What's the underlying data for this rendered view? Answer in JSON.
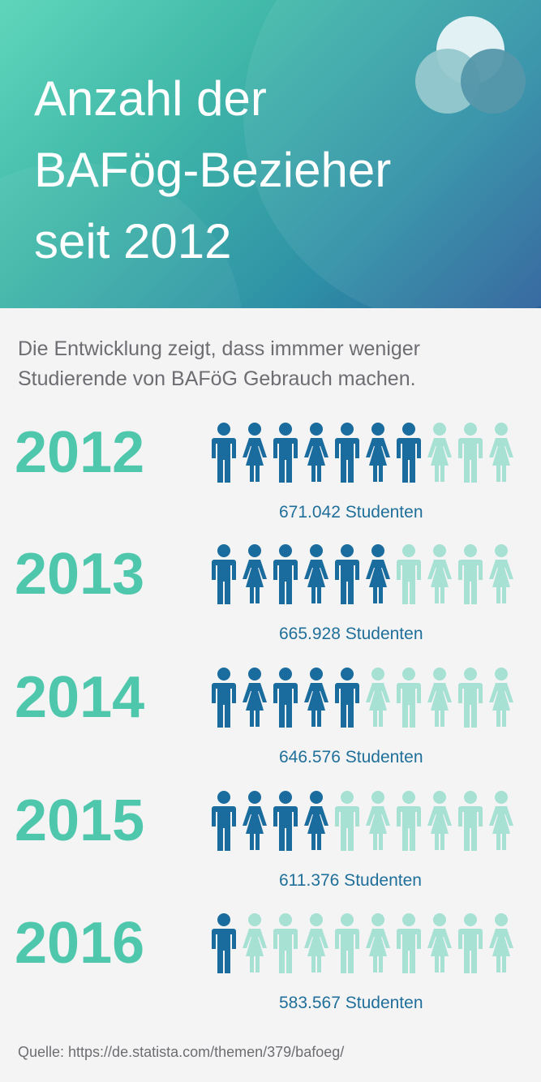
{
  "header": {
    "title": "Anzahl der\nBAFög-Bezieher\nseit 2012"
  },
  "intro": "Die Entwicklung zeigt, dass immmer weniger Studierende von BAFöG Gebrauch machen.",
  "source": "Quelle: https://de.statista.com/themen/379/bafoeg/",
  "colors": {
    "accent": "#4fc7ad",
    "dark_figure": "#1a6c9f",
    "light_figure": "#a6e1d4",
    "value_text": "#1f6f9a"
  },
  "chart_data": {
    "type": "bar",
    "categories": [
      "2012",
      "2013",
      "2014",
      "2015",
      "2016"
    ],
    "values": [
      671042,
      665928,
      646576,
      611376,
      583567
    ],
    "value_labels": [
      "671.042 Studenten",
      "665.928 Studenten",
      "646.576 Studenten",
      "611.376 Studenten",
      "583.567 Studenten"
    ],
    "filled_figures_of_10": [
      7,
      6,
      5,
      4,
      1
    ],
    "title": "Anzahl der BAFög-Bezieher seit 2012"
  }
}
